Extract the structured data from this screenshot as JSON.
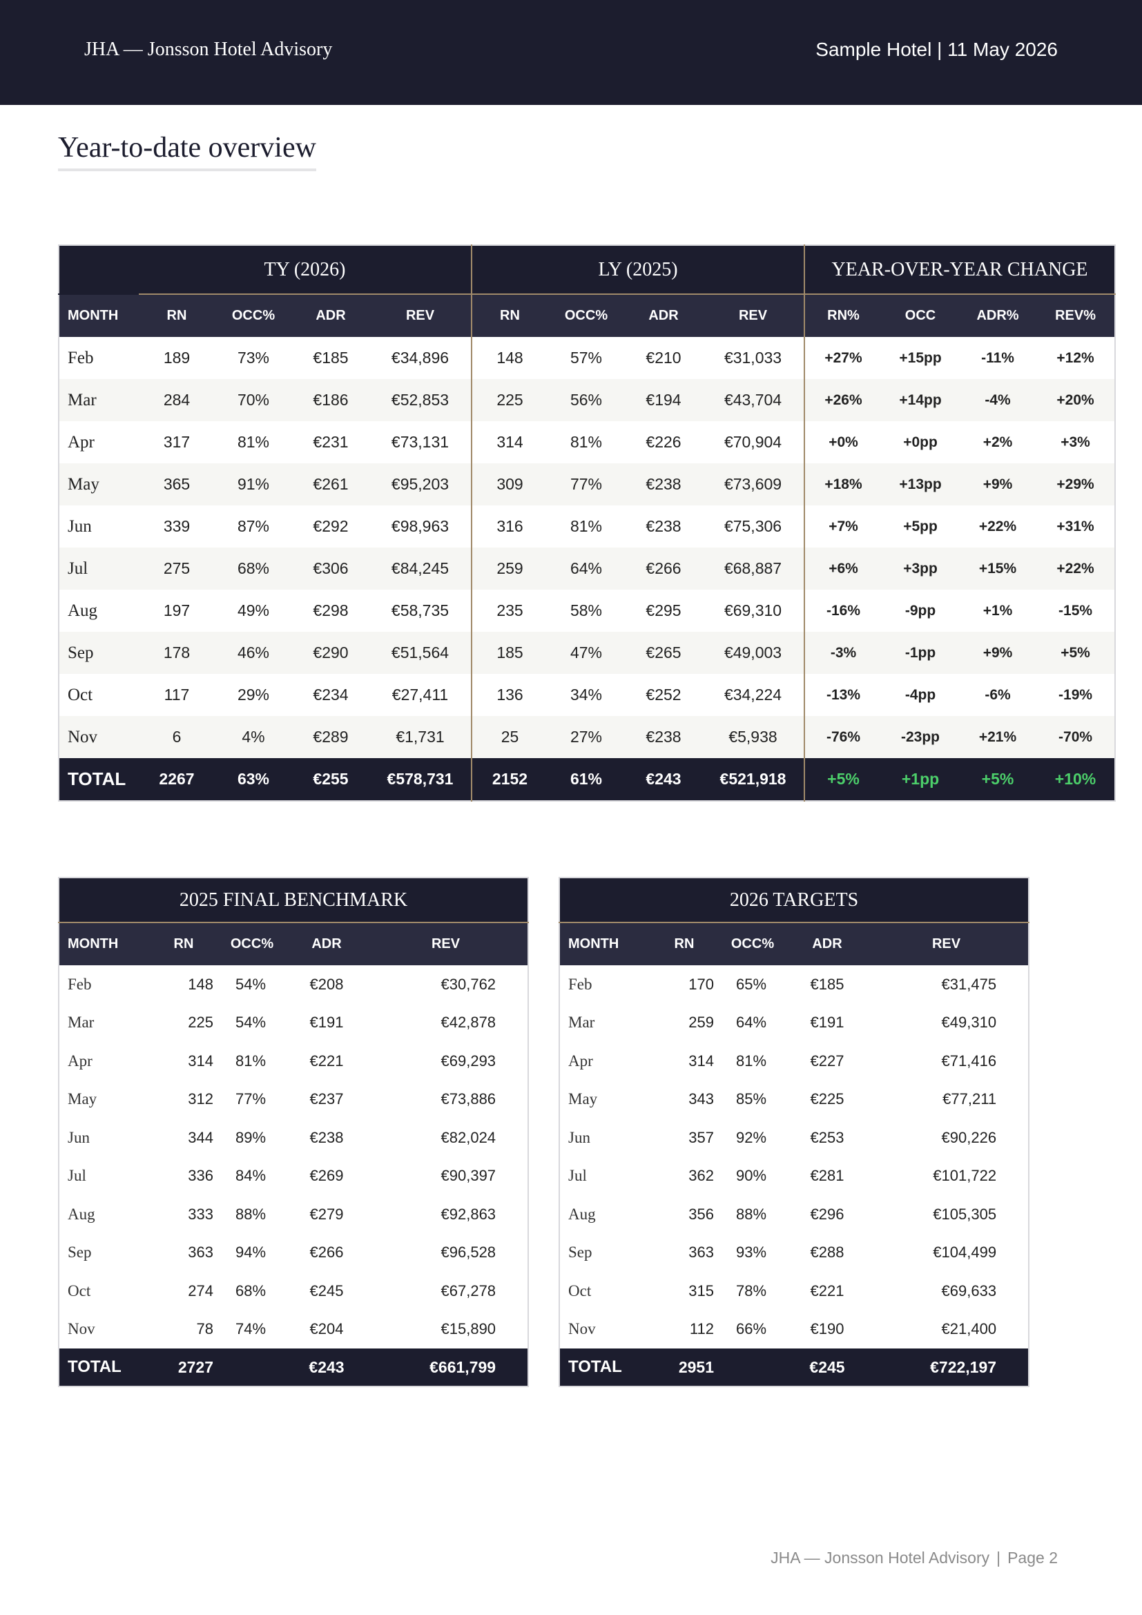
{
  "header": {
    "brand": "JHA — Jonsson Hotel Advisory",
    "hotel_date": "Sample Hotel | 11 May 2026"
  },
  "page_title": "Year-to-date overview",
  "ytd": {
    "groups": {
      "ty": "TY (2026)",
      "ly": "LY (2025)",
      "yoy": "YEAR-OVER-YEAR CHANGE"
    },
    "columns": [
      "MONTH",
      "RN",
      "OCC%",
      "ADR",
      "REV",
      "RN",
      "OCC%",
      "ADR",
      "REV",
      "RN%",
      "OCC",
      "ADR%",
      "REV%"
    ],
    "rows": [
      [
        "Feb",
        "189",
        "73%",
        "€185",
        "€34,896",
        "148",
        "57%",
        "€210",
        "€31,033",
        "+27%",
        "+15pp",
        "-11%",
        "+12%"
      ],
      [
        "Mar",
        "284",
        "70%",
        "€186",
        "€52,853",
        "225",
        "56%",
        "€194",
        "€43,704",
        "+26%",
        "+14pp",
        "-4%",
        "+20%"
      ],
      [
        "Apr",
        "317",
        "81%",
        "€231",
        "€73,131",
        "314",
        "81%",
        "€226",
        "€70,904",
        "+0%",
        "+0pp",
        "+2%",
        "+3%"
      ],
      [
        "May",
        "365",
        "91%",
        "€261",
        "€95,203",
        "309",
        "77%",
        "€238",
        "€73,609",
        "+18%",
        "+13pp",
        "+9%",
        "+29%"
      ],
      [
        "Jun",
        "339",
        "87%",
        "€292",
        "€98,963",
        "316",
        "81%",
        "€238",
        "€75,306",
        "+7%",
        "+5pp",
        "+22%",
        "+31%"
      ],
      [
        "Jul",
        "275",
        "68%",
        "€306",
        "€84,245",
        "259",
        "64%",
        "€266",
        "€68,887",
        "+6%",
        "+3pp",
        "+15%",
        "+22%"
      ],
      [
        "Aug",
        "197",
        "49%",
        "€298",
        "€58,735",
        "235",
        "58%",
        "€295",
        "€69,310",
        "-16%",
        "-9pp",
        "+1%",
        "-15%"
      ],
      [
        "Sep",
        "178",
        "46%",
        "€290",
        "€51,564",
        "185",
        "47%",
        "€265",
        "€49,003",
        "-3%",
        "-1pp",
        "+9%",
        "+5%"
      ],
      [
        "Oct",
        "117",
        "29%",
        "€234",
        "€27,411",
        "136",
        "34%",
        "€252",
        "€34,224",
        "-13%",
        "-4pp",
        "-6%",
        "-19%"
      ],
      [
        "Nov",
        "6",
        "4%",
        "€289",
        "€1,731",
        "25",
        "27%",
        "€238",
        "€5,938",
        "-76%",
        "-23pp",
        "+21%",
        "-70%"
      ]
    ],
    "total": [
      "TOTAL",
      "2267",
      "63%",
      "€255",
      "€578,731",
      "2152",
      "61%",
      "€243",
      "€521,918",
      "+5%",
      "+1pp",
      "+5%",
      "+10%"
    ]
  },
  "benchmark": {
    "title": "2025 FINAL BENCHMARK",
    "columns": [
      "MONTH",
      "RN",
      "OCC%",
      "ADR",
      "REV"
    ],
    "rows": [
      [
        "Feb",
        "148",
        "54%",
        "€208",
        "€30,762"
      ],
      [
        "Mar",
        "225",
        "54%",
        "€191",
        "€42,878"
      ],
      [
        "Apr",
        "314",
        "81%",
        "€221",
        "€69,293"
      ],
      [
        "May",
        "312",
        "77%",
        "€237",
        "€73,886"
      ],
      [
        "Jun",
        "344",
        "89%",
        "€238",
        "€82,024"
      ],
      [
        "Jul",
        "336",
        "84%",
        "€269",
        "€90,397"
      ],
      [
        "Aug",
        "333",
        "88%",
        "€279",
        "€92,863"
      ],
      [
        "Sep",
        "363",
        "94%",
        "€266",
        "€96,528"
      ],
      [
        "Oct",
        "274",
        "68%",
        "€245",
        "€67,278"
      ],
      [
        "Nov",
        "78",
        "74%",
        "€204",
        "€15,890"
      ]
    ],
    "total": [
      "TOTAL",
      "2727",
      "",
      "€243",
      "€661,799"
    ]
  },
  "targets": {
    "title": "2026 TARGETS",
    "columns": [
      "MONTH",
      "RN",
      "OCC%",
      "ADR",
      "REV"
    ],
    "rows": [
      [
        "Feb",
        "170",
        "65%",
        "€185",
        "€31,475"
      ],
      [
        "Mar",
        "259",
        "64%",
        "€191",
        "€49,310"
      ],
      [
        "Apr",
        "314",
        "81%",
        "€227",
        "€71,416"
      ],
      [
        "May",
        "343",
        "85%",
        "€225",
        "€77,211"
      ],
      [
        "Jun",
        "357",
        "92%",
        "€253",
        "€90,226"
      ],
      [
        "Jul",
        "362",
        "90%",
        "€281",
        "€101,722"
      ],
      [
        "Aug",
        "356",
        "88%",
        "€296",
        "€105,305"
      ],
      [
        "Sep",
        "363",
        "93%",
        "€288",
        "€104,499"
      ],
      [
        "Oct",
        "315",
        "78%",
        "€221",
        "€69,633"
      ],
      [
        "Nov",
        "112",
        "66%",
        "€190",
        "€21,400"
      ]
    ],
    "total": [
      "TOTAL",
      "2951",
      "",
      "€245",
      "€722,197"
    ]
  },
  "colors": {
    "navy": "#1c1d2e",
    "header": "#2b2c40",
    "gold": "#a08a6a",
    "positive": "#1f8a3c",
    "negative": "#c42b2b"
  },
  "footer": {
    "brand": "JHA — Jonsson Hotel Advisory",
    "page": "Page 2"
  }
}
